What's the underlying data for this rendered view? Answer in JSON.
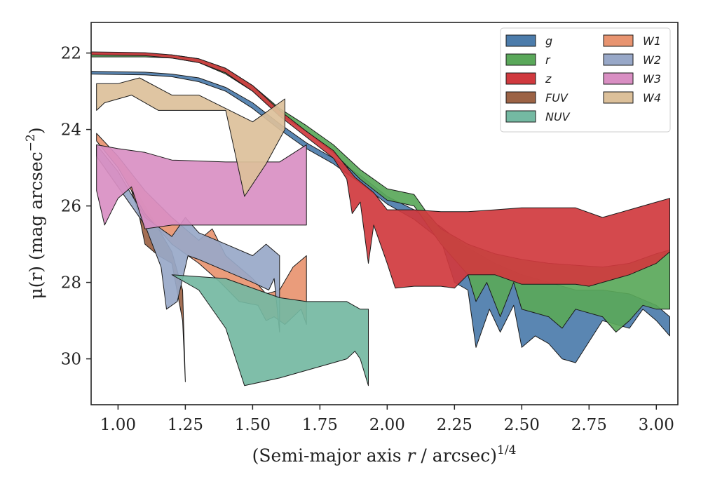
{
  "chart_data": {
    "type": "area",
    "title": "",
    "xlabel": "(Semi-major axis r / arcsec)",
    "xlabel_italic": "r",
    "xlabel_exponent": "1/4",
    "ylabel": "μ(r) (mag arcsec",
    "ylabel_exponent": "−2",
    "ylabel_close": ")",
    "xlim": [
      0.9,
      3.08
    ],
    "ylim": [
      31.2,
      21.2
    ],
    "y_inverted": true,
    "grid": false,
    "legend_position": "top-right",
    "legend_columns": 2,
    "x_ticks": [
      1.0,
      1.25,
      1.5,
      1.75,
      2.0,
      2.25,
      2.5,
      2.75,
      3.0
    ],
    "x_tick_labels": [
      "1.00",
      "1.25",
      "1.50",
      "1.75",
      "2.00",
      "2.25",
      "2.50",
      "2.75",
      "3.00"
    ],
    "y_ticks": [
      22,
      24,
      26,
      28,
      30
    ],
    "y_tick_labels": [
      "22",
      "24",
      "26",
      "28",
      "30"
    ],
    "series": [
      {
        "name": "g",
        "color": "#4c7cab",
        "upper": [
          [
            0.9,
            22.48
          ],
          [
            1.1,
            22.5
          ],
          [
            1.2,
            22.55
          ],
          [
            1.3,
            22.65
          ],
          [
            1.4,
            22.9
          ],
          [
            1.5,
            23.3
          ],
          [
            1.6,
            23.85
          ],
          [
            1.7,
            24.35
          ],
          [
            1.8,
            24.75
          ],
          [
            1.9,
            25.2
          ],
          [
            2.0,
            25.75
          ],
          [
            2.1,
            26.1
          ],
          [
            2.2,
            26.55
          ],
          [
            2.3,
            27.1
          ],
          [
            2.4,
            27.5
          ],
          [
            2.5,
            27.8
          ],
          [
            2.6,
            28.0
          ],
          [
            2.7,
            28.2
          ],
          [
            2.8,
            28.2
          ],
          [
            2.9,
            28.3
          ],
          [
            3.0,
            28.6
          ],
          [
            3.05,
            28.9
          ]
        ],
        "lower": [
          [
            0.9,
            22.55
          ],
          [
            1.1,
            22.57
          ],
          [
            1.2,
            22.62
          ],
          [
            1.3,
            22.75
          ],
          [
            1.4,
            23.0
          ],
          [
            1.5,
            23.45
          ],
          [
            1.6,
            24.0
          ],
          [
            1.7,
            24.5
          ],
          [
            1.8,
            24.9
          ],
          [
            1.9,
            25.4
          ],
          [
            2.0,
            25.95
          ],
          [
            2.1,
            26.35
          ],
          [
            2.2,
            26.9
          ],
          [
            2.25,
            28.0
          ],
          [
            2.3,
            28.2
          ],
          [
            2.33,
            29.7
          ],
          [
            2.38,
            28.7
          ],
          [
            2.42,
            29.3
          ],
          [
            2.47,
            28.6
          ],
          [
            2.5,
            29.7
          ],
          [
            2.55,
            29.4
          ],
          [
            2.6,
            29.6
          ],
          [
            2.65,
            30.0
          ],
          [
            2.7,
            30.1
          ],
          [
            2.8,
            29.0
          ],
          [
            2.9,
            29.2
          ],
          [
            2.95,
            28.7
          ],
          [
            3.0,
            29.0
          ],
          [
            3.05,
            29.4
          ]
        ]
      },
      {
        "name": "r",
        "color": "#5aa85a",
        "upper": [
          [
            0.9,
            22.02
          ],
          [
            1.1,
            22.02
          ],
          [
            1.2,
            22.05
          ],
          [
            1.3,
            22.15
          ],
          [
            1.4,
            22.4
          ],
          [
            1.5,
            22.85
          ],
          [
            1.6,
            23.45
          ],
          [
            1.7,
            23.9
          ],
          [
            1.8,
            24.4
          ],
          [
            1.9,
            25.05
          ],
          [
            2.0,
            25.55
          ],
          [
            2.1,
            25.7
          ],
          [
            2.15,
            26.2
          ],
          [
            2.2,
            26.6
          ],
          [
            2.3,
            27.0
          ],
          [
            2.4,
            27.25
          ],
          [
            2.5,
            27.4
          ],
          [
            2.6,
            27.5
          ],
          [
            2.7,
            27.55
          ],
          [
            2.8,
            27.6
          ],
          [
            2.9,
            27.5
          ],
          [
            3.0,
            27.25
          ],
          [
            3.05,
            27.15
          ]
        ],
        "lower": [
          [
            0.9,
            22.1
          ],
          [
            1.1,
            22.1
          ],
          [
            1.2,
            22.13
          ],
          [
            1.3,
            22.25
          ],
          [
            1.4,
            22.55
          ],
          [
            1.5,
            23.0
          ],
          [
            1.6,
            23.6
          ],
          [
            1.7,
            24.05
          ],
          [
            1.8,
            24.6
          ],
          [
            1.9,
            25.3
          ],
          [
            2.0,
            25.85
          ],
          [
            2.1,
            26.0
          ],
          [
            2.15,
            26.5
          ],
          [
            2.2,
            27.0
          ],
          [
            2.3,
            27.8
          ],
          [
            2.33,
            28.5
          ],
          [
            2.37,
            28.0
          ],
          [
            2.42,
            28.9
          ],
          [
            2.47,
            28.0
          ],
          [
            2.5,
            28.7
          ],
          [
            2.6,
            28.9
          ],
          [
            2.65,
            29.2
          ],
          [
            2.7,
            28.7
          ],
          [
            2.8,
            28.9
          ],
          [
            2.85,
            29.3
          ],
          [
            2.9,
            29.0
          ],
          [
            2.95,
            28.6
          ],
          [
            3.0,
            28.7
          ],
          [
            3.05,
            28.7
          ]
        ]
      },
      {
        "name": "z",
        "color": "#d0393e",
        "upper": [
          [
            0.9,
            21.97
          ],
          [
            1.0,
            21.98
          ],
          [
            1.1,
            21.99
          ],
          [
            1.2,
            22.05
          ],
          [
            1.3,
            22.15
          ],
          [
            1.4,
            22.4
          ],
          [
            1.5,
            22.85
          ],
          [
            1.6,
            23.5
          ],
          [
            1.7,
            24.05
          ],
          [
            1.8,
            24.55
          ],
          [
            1.88,
            25.25
          ],
          [
            1.95,
            25.65
          ],
          [
            2.0,
            26.1
          ],
          [
            2.1,
            26.1
          ],
          [
            2.2,
            26.15
          ],
          [
            2.3,
            26.15
          ],
          [
            2.4,
            26.1
          ],
          [
            2.5,
            26.05
          ],
          [
            2.6,
            26.05
          ],
          [
            2.7,
            26.05
          ],
          [
            2.8,
            26.3
          ],
          [
            2.9,
            26.1
          ],
          [
            3.0,
            25.9
          ],
          [
            3.05,
            25.8
          ]
        ],
        "lower": [
          [
            0.9,
            22.05
          ],
          [
            1.0,
            22.06
          ],
          [
            1.1,
            22.07
          ],
          [
            1.2,
            22.13
          ],
          [
            1.3,
            22.25
          ],
          [
            1.4,
            22.52
          ],
          [
            1.5,
            23.0
          ],
          [
            1.6,
            23.65
          ],
          [
            1.7,
            24.2
          ],
          [
            1.8,
            24.75
          ],
          [
            1.85,
            25.3
          ],
          [
            1.87,
            26.2
          ],
          [
            1.9,
            25.9
          ],
          [
            1.93,
            27.5
          ],
          [
            1.95,
            26.5
          ],
          [
            2.0,
            27.5
          ],
          [
            2.03,
            28.15
          ],
          [
            2.1,
            28.1
          ],
          [
            2.2,
            28.1
          ],
          [
            2.25,
            28.15
          ],
          [
            2.3,
            27.8
          ],
          [
            2.4,
            27.8
          ],
          [
            2.5,
            28.05
          ],
          [
            2.6,
            28.05
          ],
          [
            2.7,
            28.05
          ],
          [
            2.75,
            28.1
          ],
          [
            2.8,
            28.0
          ],
          [
            2.9,
            27.8
          ],
          [
            3.0,
            27.5
          ],
          [
            3.05,
            27.2
          ]
        ]
      },
      {
        "name": "FUV",
        "color": "#9c6345",
        "upper": [
          [
            1.05,
            25.4
          ],
          [
            1.1,
            26.0
          ],
          [
            1.15,
            26.6
          ],
          [
            1.2,
            27.2
          ],
          [
            1.24,
            28.2
          ]
        ],
        "lower": [
          [
            1.05,
            25.6
          ],
          [
            1.08,
            26.3
          ],
          [
            1.1,
            27.0
          ],
          [
            1.15,
            27.3
          ],
          [
            1.2,
            27.5
          ],
          [
            1.24,
            29.0
          ],
          [
            1.25,
            30.6
          ]
        ]
      },
      {
        "name": "NUV",
        "color": "#74b9a2",
        "upper": [
          [
            1.2,
            27.8
          ],
          [
            1.4,
            27.9
          ],
          [
            1.6,
            28.4
          ],
          [
            1.7,
            28.5
          ],
          [
            1.8,
            28.5
          ],
          [
            1.85,
            28.5
          ],
          [
            1.9,
            28.7
          ],
          [
            1.93,
            28.7
          ]
        ],
        "lower": [
          [
            1.2,
            27.8
          ],
          [
            1.3,
            28.2
          ],
          [
            1.4,
            29.2
          ],
          [
            1.47,
            30.7
          ],
          [
            1.6,
            30.5
          ],
          [
            1.7,
            30.3
          ],
          [
            1.8,
            30.1
          ],
          [
            1.85,
            30.0
          ],
          [
            1.88,
            29.8
          ],
          [
            1.9,
            30.0
          ],
          [
            1.93,
            30.7
          ]
        ]
      },
      {
        "name": "W1",
        "color": "#e89470",
        "upper": [
          [
            0.92,
            24.1
          ],
          [
            1.0,
            24.7
          ],
          [
            1.1,
            25.6
          ],
          [
            1.2,
            26.3
          ],
          [
            1.3,
            26.9
          ],
          [
            1.35,
            26.6
          ],
          [
            1.4,
            27.3
          ],
          [
            1.5,
            27.9
          ],
          [
            1.55,
            28.3
          ],
          [
            1.6,
            28.2
          ],
          [
            1.65,
            27.6
          ],
          [
            1.7,
            27.3
          ]
        ],
        "lower": [
          [
            0.92,
            24.3
          ],
          [
            1.0,
            25.0
          ],
          [
            1.1,
            26.2
          ],
          [
            1.2,
            27.0
          ],
          [
            1.3,
            27.5
          ],
          [
            1.38,
            28.0
          ],
          [
            1.45,
            28.5
          ],
          [
            1.52,
            28.6
          ],
          [
            1.55,
            29.0
          ],
          [
            1.58,
            28.9
          ],
          [
            1.62,
            29.1
          ],
          [
            1.68,
            28.7
          ],
          [
            1.7,
            29.1
          ]
        ]
      },
      {
        "name": "W2",
        "color": "#98a8c8",
        "upper": [
          [
            0.92,
            24.4
          ],
          [
            1.0,
            25.1
          ],
          [
            1.1,
            26.3
          ],
          [
            1.2,
            26.8
          ],
          [
            1.25,
            26.3
          ],
          [
            1.3,
            26.7
          ],
          [
            1.4,
            27.0
          ],
          [
            1.5,
            27.3
          ],
          [
            1.55,
            27.0
          ],
          [
            1.6,
            27.3
          ]
        ],
        "lower": [
          [
            0.92,
            24.7
          ],
          [
            1.0,
            25.5
          ],
          [
            1.1,
            26.5
          ],
          [
            1.16,
            27.6
          ],
          [
            1.18,
            28.7
          ],
          [
            1.22,
            28.5
          ],
          [
            1.26,
            27.3
          ],
          [
            1.3,
            27.4
          ],
          [
            1.4,
            27.7
          ],
          [
            1.5,
            28.0
          ],
          [
            1.56,
            28.2
          ],
          [
            1.58,
            27.9
          ],
          [
            1.6,
            29.3
          ]
        ]
      },
      {
        "name": "W3",
        "color": "#d98fc3",
        "upper": [
          [
            0.92,
            24.4
          ],
          [
            1.0,
            24.5
          ],
          [
            1.1,
            24.6
          ],
          [
            1.2,
            24.8
          ],
          [
            1.4,
            24.85
          ],
          [
            1.6,
            24.85
          ],
          [
            1.7,
            24.4
          ]
        ],
        "lower": [
          [
            0.92,
            25.6
          ],
          [
            0.95,
            26.5
          ],
          [
            1.0,
            25.8
          ],
          [
            1.05,
            25.5
          ],
          [
            1.1,
            26.6
          ],
          [
            1.2,
            26.5
          ],
          [
            1.4,
            26.5
          ],
          [
            1.6,
            26.5
          ],
          [
            1.7,
            26.5
          ]
        ]
      },
      {
        "name": "W4",
        "color": "#dcc09a",
        "upper": [
          [
            0.92,
            22.8
          ],
          [
            1.0,
            22.8
          ],
          [
            1.08,
            22.65
          ],
          [
            1.2,
            23.1
          ],
          [
            1.3,
            23.1
          ],
          [
            1.5,
            23.8
          ],
          [
            1.62,
            23.2
          ]
        ],
        "lower": [
          [
            0.92,
            23.5
          ],
          [
            0.95,
            23.3
          ],
          [
            1.05,
            23.1
          ],
          [
            1.15,
            23.5
          ],
          [
            1.3,
            23.5
          ],
          [
            1.4,
            23.5
          ],
          [
            1.47,
            25.75
          ],
          [
            1.55,
            24.9
          ],
          [
            1.62,
            24.0
          ]
        ]
      }
    ]
  }
}
